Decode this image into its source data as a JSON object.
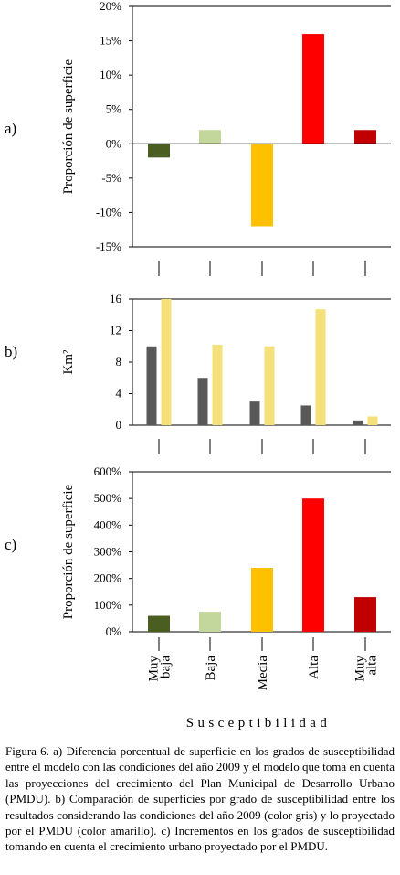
{
  "chart_data": [
    {
      "type": "bar",
      "panel_label": "a)",
      "ylabel": "Proporción de superficie",
      "categories": [
        "Muy baja",
        "Baja",
        "Media",
        "Alta",
        "Muy alta"
      ],
      "values": [
        -2,
        2,
        -12,
        16,
        2
      ],
      "colors": [
        "#4b5e22",
        "#c3d69b",
        "#ffc000",
        "#ff0000",
        "#c00000"
      ],
      "ylim": [
        -15,
        20
      ],
      "yticks": [
        "-15%",
        "-10%",
        "-5%",
        "0%",
        "5%",
        "10%",
        "15%",
        "20%"
      ],
      "grid": false
    },
    {
      "type": "bar",
      "panel_label": "b)",
      "ylabel": "Km²",
      "categories": [
        "Muy baja",
        "Baja",
        "Media",
        "Alta",
        "Muy alta"
      ],
      "series": [
        {
          "values": [
            10,
            6,
            3,
            2.5,
            0.6
          ],
          "color": "#595959"
        },
        {
          "values": [
            16,
            10.2,
            10,
            14.7,
            1.1
          ],
          "color": "#f5e17a"
        }
      ],
      "ylim": [
        0,
        16
      ],
      "yticks": [
        "0",
        "4",
        "8",
        "12",
        "16"
      ],
      "grid": false
    },
    {
      "type": "bar",
      "panel_label": "c)",
      "ylabel": "Proporción de superficie",
      "categories": [
        "Muy baja",
        "Baja",
        "Media",
        "Alta",
        "Muy alta"
      ],
      "values": [
        60,
        75,
        240,
        500,
        130
      ],
      "colors": [
        "#4b5e22",
        "#c3d69b",
        "#ffc000",
        "#ff0000",
        "#c00000"
      ],
      "ylim": [
        0,
        600
      ],
      "yticks": [
        "0%",
        "100%",
        "200%",
        "300%",
        "400%",
        "500%",
        "600%"
      ],
      "grid": false
    }
  ],
  "category_labels": [
    [
      "Muy",
      "baja"
    ],
    [
      "Baja"
    ],
    [
      "Media"
    ],
    [
      "Alta"
    ],
    [
      "Muy",
      "alta"
    ]
  ],
  "xlabel": "Susceptibilidad",
  "caption": "Figura 6. a) Diferencia porcentual de superficie en los grados de susceptibilidad entre el modelo con las condiciones del año 2009 y el modelo que toma en cuenta las proyecciones del crecimiento del Plan Municipal de Desarrollo Urbano (PMDU). b) Comparación de superficies por grado de susceptibilidad entre los resultados considerando las condiciones del año 2009 (color gris) y lo proyectado por el PMDU (color amarillo). c) Incrementos en los grados de susceptibilidad tomando en cuenta el crecimiento urbano proyectado por el PMDU."
}
